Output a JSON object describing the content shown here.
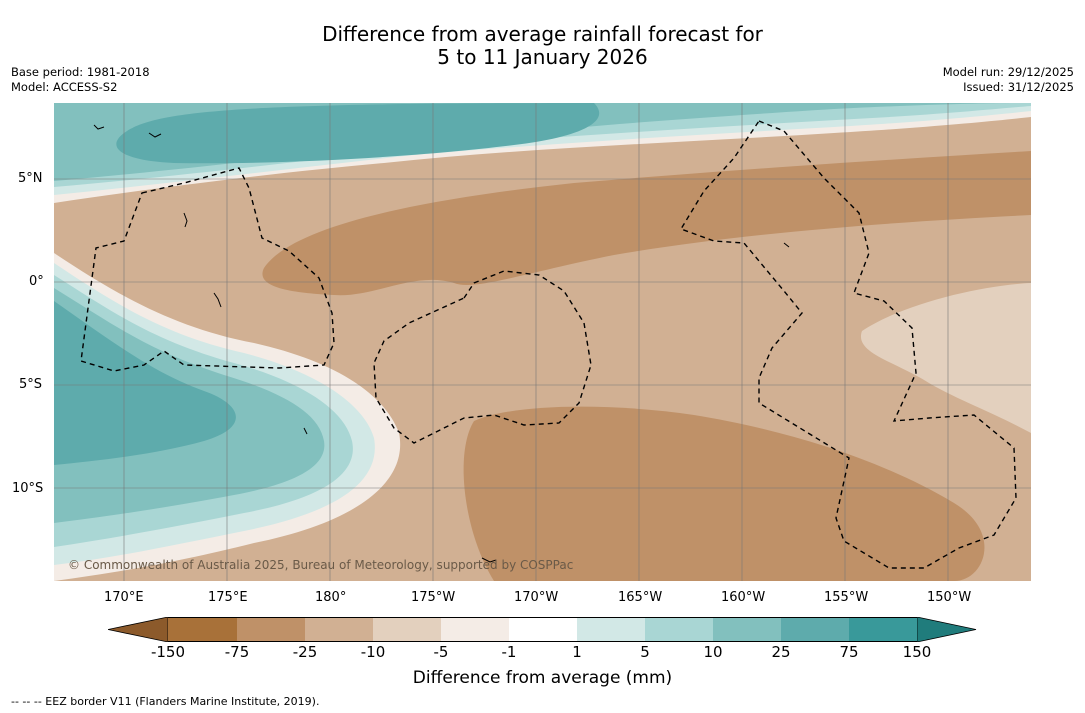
{
  "header": {
    "title_line1": "Difference from average rainfall forecast for",
    "title_line2": "5 to 11 January 2026",
    "base_period": "Base period: 1981-2018",
    "model": "Model: ACCESS-S2",
    "model_run": "Model run: 29/12/2025",
    "issued": "Issued: 31/12/2025"
  },
  "map": {
    "lat_labels": [
      "5°N",
      "0°",
      "5°S",
      "10°S"
    ],
    "lon_labels": [
      "170°E",
      "175°E",
      "180°",
      "175°W",
      "170°W",
      "165°W",
      "160°W",
      "155°W",
      "150°W"
    ],
    "credit": "© Commonwealth of Australia 2025, Bureau of Meteorology, supported by COSPPac"
  },
  "colorbar": {
    "ticks": [
      "-150",
      "-75",
      "-25",
      "-10",
      "-5",
      "-1",
      "1",
      "5",
      "10",
      "25",
      "75",
      "150"
    ],
    "colors": [
      "#8c5a2b",
      "#a87139",
      "#bf9168",
      "#d1b093",
      "#e3d0be",
      "#f4ece6",
      "#ffffff",
      "#d2e8e6",
      "#a9d6d4",
      "#82c0be",
      "#5eabac",
      "#39999a",
      "#207c7c"
    ],
    "label": "Difference from average (mm)"
  },
  "footer": "--  --  -- EEZ border V11 (Flanders Marine Institute, 2019)."
}
